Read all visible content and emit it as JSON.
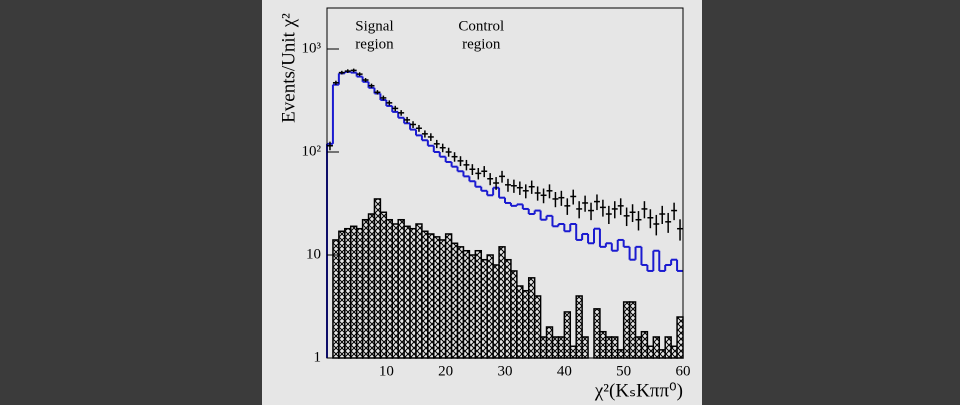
{
  "chart_data": {
    "type": "histogram",
    "y_label": "Events/Unit χ²",
    "x_label": "χ²(KₛKππ⁰)",
    "annotations": [
      {
        "lines": [
          "Signal",
          "region"
        ],
        "x": 8
      },
      {
        "lines": [
          "Control",
          "region"
        ],
        "x": 26
      }
    ],
    "bins": [
      0,
      1,
      2,
      3,
      4,
      5,
      6,
      7,
      8,
      9,
      10,
      11,
      12,
      13,
      14,
      15,
      16,
      17,
      18,
      19,
      20,
      21,
      22,
      23,
      24,
      25,
      26,
      27,
      28,
      29,
      30,
      31,
      32,
      33,
      34,
      35,
      36,
      37,
      38,
      39,
      40,
      41,
      42,
      43,
      44,
      45,
      46,
      47,
      48,
      49,
      50,
      51,
      52,
      53,
      54,
      55,
      56,
      57,
      58,
      59,
      60
    ],
    "series": [
      {
        "style": "hatched",
        "color": "#000000",
        "values": [
          1,
          14,
          17,
          18,
          19,
          18,
          22,
          25,
          35,
          26,
          22,
          20,
          22,
          19,
          18,
          20,
          17,
          16,
          15,
          14,
          16,
          13,
          12,
          11,
          10,
          11,
          9,
          10,
          8,
          12,
          9,
          7,
          5,
          4.5,
          6,
          4,
          1.6,
          2,
          1.6,
          1.6,
          2.8,
          1.3,
          4,
          1.6,
          1,
          3,
          1.8,
          1.6,
          1.6,
          1.2,
          3.5,
          3.5,
          1.6,
          1.8,
          1.3,
          1.6,
          1.2,
          1.6,
          1.3,
          2.5
        ]
      },
      {
        "style": "step",
        "color": "#1a1ad0",
        "values": [
          120,
          450,
          580,
          600,
          590,
          540,
          480,
          420,
          370,
          320,
          280,
          245,
          215,
          190,
          165,
          145,
          130,
          115,
          100,
          90,
          80,
          72,
          65,
          58,
          52,
          46,
          42,
          38,
          45,
          36,
          32,
          30,
          31,
          28,
          25,
          27,
          22,
          24,
          19,
          20,
          17,
          20,
          14,
          16,
          13,
          18,
          12,
          13,
          11,
          14,
          12,
          9,
          12,
          8,
          7,
          11,
          7,
          8,
          9,
          7
        ]
      },
      {
        "style": "points",
        "color": "#000000",
        "values": [
          115,
          470,
          590,
          610,
          620,
          570,
          500,
          440,
          380,
          335,
          300,
          265,
          240,
          205,
          185,
          170,
          150,
          140,
          120,
          110,
          100,
          90,
          82,
          75,
          68,
          62,
          65,
          55,
          50,
          58,
          48,
          47,
          45,
          42,
          46,
          40,
          38,
          42,
          35,
          36,
          30,
          37,
          28,
          32,
          27,
          33,
          29,
          25,
          28,
          30,
          24,
          26,
          22,
          28,
          23,
          20,
          25,
          21,
          27,
          18
        ],
        "errors": [
          11,
          22,
          24,
          25,
          25,
          24,
          22,
          21,
          19,
          18,
          17,
          16,
          15,
          14,
          14,
          13,
          12,
          12,
          11,
          10.5,
          10,
          9.5,
          9,
          8.7,
          8.2,
          7.9,
          8,
          7.4,
          7.1,
          7.6,
          6.9,
          6.9,
          6.7,
          6.5,
          6.8,
          6.3,
          6.2,
          6.5,
          5.9,
          6,
          5.5,
          6.1,
          5.3,
          5.7,
          5.2,
          5.7,
          5.4,
          5,
          5.3,
          5.5,
          4.9,
          5.1,
          4.7,
          5.3,
          4.8,
          4.5,
          5,
          4.6,
          5.2,
          4.2
        ]
      }
    ],
    "xlim": [
      0,
      60
    ],
    "xticks": [
      10,
      20,
      30,
      40,
      50,
      60
    ],
    "ylim": [
      1,
      2500
    ],
    "ylog": true,
    "yticks": [
      1,
      10,
      {
        "value": 100,
        "label": "10²"
      },
      {
        "value": 1000,
        "label": "10³"
      }
    ]
  }
}
